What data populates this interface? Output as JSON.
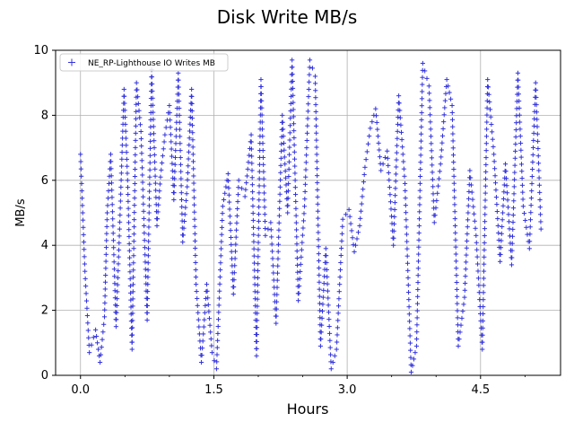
{
  "chart_data": {
    "type": "scatter",
    "title": "Disk Write MB/s",
    "xlabel": "Hours",
    "ylabel": "MB/s",
    "xlim": [
      -0.28,
      5.4
    ],
    "ylim": [
      0,
      10
    ],
    "xticks": [
      0.0,
      1.5,
      3.0,
      4.5
    ],
    "xtick_labels": [
      "0.0",
      "1.5",
      "3.0",
      "4.5"
    ],
    "yticks": [
      0,
      2,
      4,
      6,
      8,
      10
    ],
    "ytick_labels": [
      "0",
      "2",
      "4",
      "6",
      "8",
      "10"
    ],
    "grid": true,
    "legend_position": "upper-left",
    "marker": "+",
    "series": [
      {
        "name": "NE_RP-Lighthouse IO Writes MB",
        "color": "#3333dd",
        "x": [
          0.0,
          0.05,
          0.1,
          0.17,
          0.22,
          0.27,
          0.3,
          0.34,
          0.4,
          0.44,
          0.49,
          0.53,
          0.58,
          0.63,
          0.68,
          0.75,
          0.8,
          0.86,
          0.9,
          0.95,
          1.0,
          1.05,
          1.1,
          1.15,
          1.2,
          1.25,
          1.3,
          1.36,
          1.42,
          1.48,
          1.53,
          1.6,
          1.66,
          1.72,
          1.78,
          1.85,
          1.92,
          1.98,
          2.03,
          2.08,
          2.14,
          2.2,
          2.27,
          2.33,
          2.38,
          2.45,
          2.52,
          2.58,
          2.64,
          2.7,
          2.76,
          2.82,
          2.88,
          2.95,
          3.02,
          3.08,
          3.14,
          3.2,
          3.26,
          3.32,
          3.38,
          3.45,
          3.52,
          3.58,
          3.65,
          3.72,
          3.78,
          3.85,
          3.92,
          3.98,
          4.05,
          4.12,
          4.18,
          4.25,
          4.32,
          4.38,
          4.45,
          4.52,
          4.58,
          4.65,
          4.72,
          4.78,
          4.85,
          4.92,
          4.98,
          5.05,
          5.12,
          5.18
        ],
        "y": [
          6.8,
          3.2,
          0.7,
          1.4,
          0.4,
          1.8,
          5.0,
          6.8,
          1.5,
          4.5,
          8.8,
          6.0,
          0.8,
          9.0,
          7.5,
          1.7,
          9.4,
          4.6,
          6.1,
          7.4,
          8.3,
          5.4,
          9.3,
          4.1,
          5.8,
          8.8,
          2.8,
          0.4,
          2.8,
          0.7,
          0.2,
          5.2,
          6.2,
          2.5,
          6.0,
          5.5,
          7.4,
          0.6,
          9.1,
          4.3,
          4.7,
          1.6,
          8.0,
          5.0,
          9.7,
          2.3,
          5.2,
          9.7,
          9.2,
          0.9,
          3.9,
          0.2,
          0.8,
          4.8,
          5.1,
          3.8,
          4.6,
          6.4,
          7.6,
          8.2,
          6.3,
          6.9,
          4.0,
          8.6,
          5.9,
          0.1,
          0.9,
          9.6,
          8.9,
          4.7,
          6.5,
          9.1,
          8.3,
          0.9,
          2.4,
          6.3,
          4.3,
          0.8,
          9.1,
          6.8,
          3.5,
          6.5,
          3.4,
          9.3,
          5.2,
          3.9,
          9.0,
          4.5
        ]
      }
    ]
  }
}
